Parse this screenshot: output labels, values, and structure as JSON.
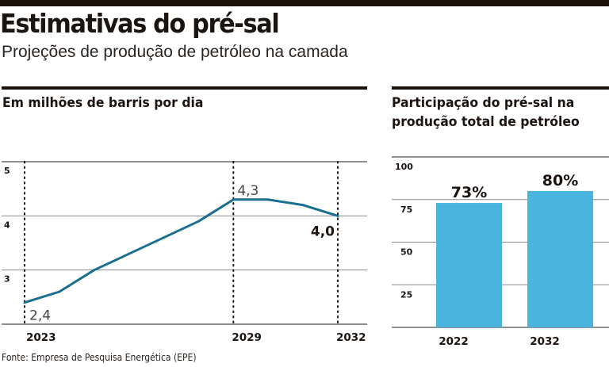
{
  "header": {
    "title": "Estimativas do pré-sal",
    "subtitle": "Projeções de produção de petróleo na camada"
  },
  "source": "Fonte: Empresa de Pesquisa Energética (EPE)",
  "colors": {
    "line": "#1a6f8f",
    "bar": "#4ab4e0",
    "text": "#1b1410",
    "grid": "#8a8a8a"
  },
  "chart_data": [
    {
      "type": "line",
      "title": "Em milhões de barris por dia",
      "xlabel": "",
      "ylabel": "",
      "x": [
        2023,
        2024,
        2025,
        2026,
        2027,
        2028,
        2029,
        2030,
        2031,
        2032
      ],
      "values": [
        2.4,
        2.6,
        3.0,
        3.3,
        3.6,
        3.9,
        4.3,
        4.3,
        4.2,
        4.0
      ],
      "ylim": [
        2,
        5
      ],
      "xlim": [
        2023,
        2032
      ],
      "yticks": [
        "3",
        "4",
        "5"
      ],
      "ytick_values": [
        3,
        4,
        5
      ],
      "xticks": [
        "2023",
        "2029",
        "2032"
      ],
      "xtick_values": [
        2023,
        2029,
        2032
      ],
      "annotations": [
        {
          "x": 2023,
          "y": 2.4,
          "label": "2,4"
        },
        {
          "x": 2029,
          "y": 4.3,
          "label": "4,3"
        },
        {
          "x": 2032,
          "y": 4.0,
          "label": "4,0"
        }
      ],
      "grid": true,
      "legend": "none"
    },
    {
      "type": "bar",
      "title": "Participação do pré-sal na produção total de petróleo",
      "title_lines": [
        "Participação do pré-sal na",
        "produção total de petróleo"
      ],
      "categories": [
        "2022",
        "2032"
      ],
      "values": [
        73,
        80
      ],
      "value_labels": [
        "73%",
        "80%"
      ],
      "ylim": [
        0,
        100
      ],
      "yticks": [
        "25",
        "50",
        "75",
        "100"
      ],
      "ytick_values": [
        25,
        50,
        75,
        100
      ],
      "grid": true,
      "legend": "none"
    }
  ]
}
